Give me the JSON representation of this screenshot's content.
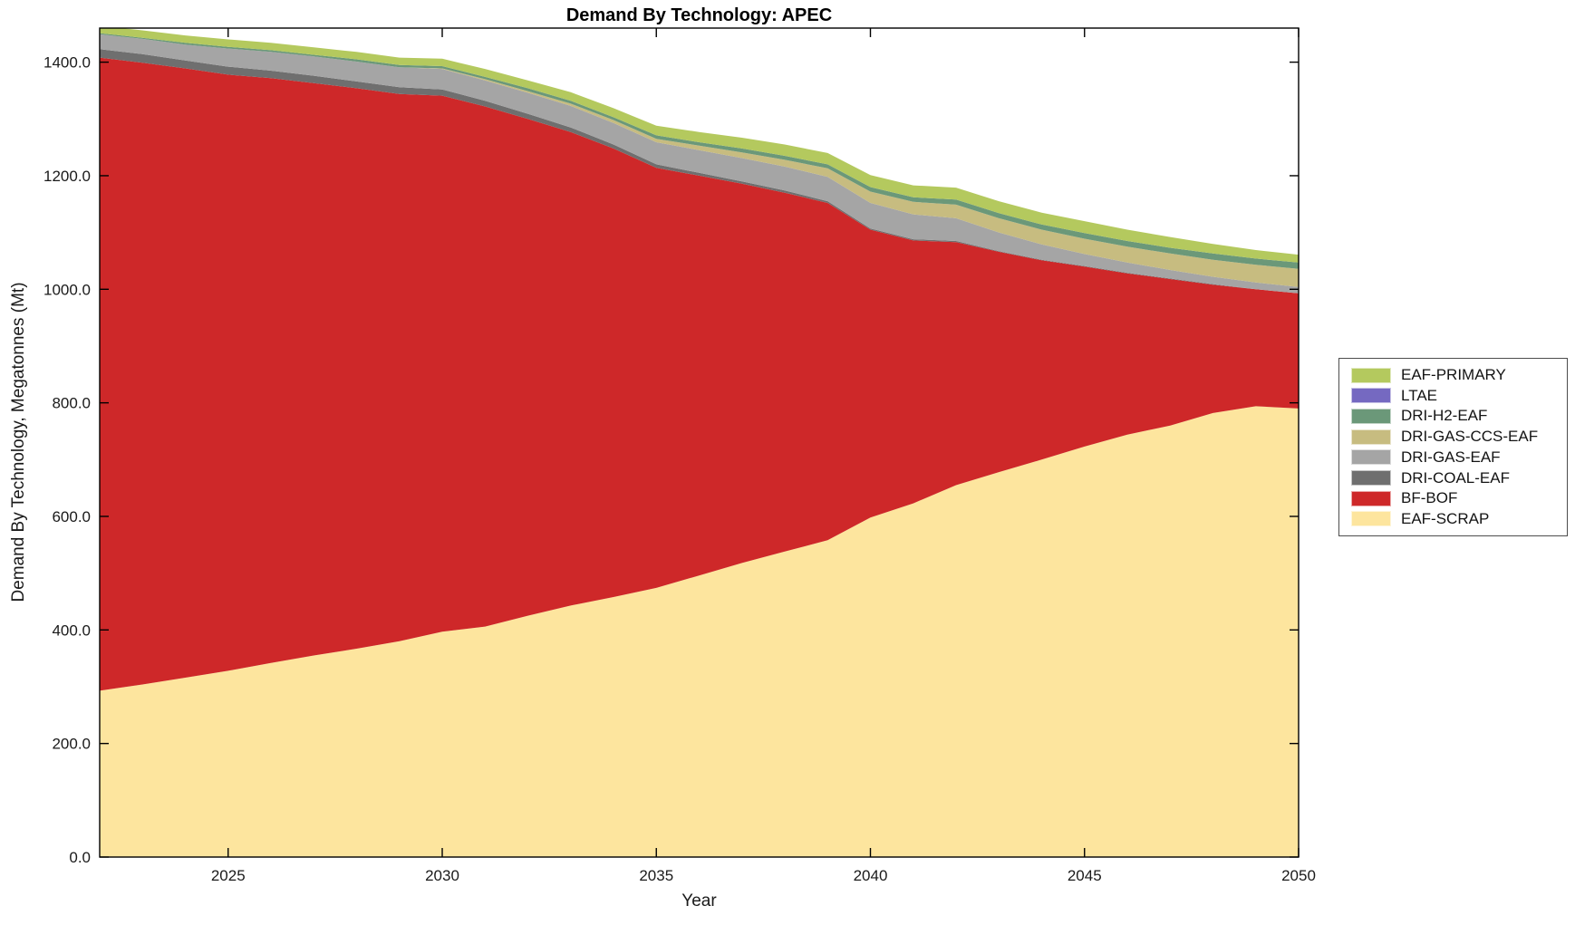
{
  "chart_data": {
    "type": "area",
    "stacked": true,
    "title": "Demand By Technology: APEC",
    "xlabel": "Year",
    "ylabel": "Demand By Technology, Megatonnes (Mt)",
    "x": [
      2022,
      2023,
      2024,
      2025,
      2026,
      2027,
      2028,
      2029,
      2030,
      2031,
      2032,
      2033,
      2034,
      2035,
      2036,
      2037,
      2038,
      2039,
      2040,
      2041,
      2042,
      2043,
      2044,
      2045,
      2046,
      2047,
      2048,
      2049,
      2050
    ],
    "series": [
      {
        "name": "EAF-SCRAP",
        "color": "#fde59e",
        "values": [
          293,
          304,
          316,
          328,
          342,
          355,
          367,
          380,
          397,
          406,
          425,
          443,
          458,
          474,
          496,
          518,
          538,
          558,
          598,
          623,
          655,
          678,
          700,
          723,
          744,
          760,
          782,
          794,
          790
        ]
      },
      {
        "name": "BF-BOF",
        "color": "#ce2829",
        "values": [
          1115,
          1095,
          1073,
          1050,
          1030,
          1008,
          987,
          964,
          944,
          916,
          875,
          834,
          790,
          740,
          704,
          668,
          632,
          594,
          507,
          463,
          428,
          388,
          351,
          317,
          284,
          258,
          226,
          206,
          203
        ]
      },
      {
        "name": "DRI-COAL-EAF",
        "color": "#6f6f6f",
        "values": [
          15,
          15,
          14,
          14,
          13,
          13,
          12,
          12,
          11,
          10,
          9,
          8,
          7,
          6,
          5,
          4,
          4,
          3,
          2,
          2,
          2,
          1,
          1,
          1,
          1,
          1,
          1,
          0,
          0
        ]
      },
      {
        "name": "DRI-GAS-EAF",
        "color": "#a5a5a5",
        "values": [
          26,
          27,
          28,
          32,
          33,
          34,
          35,
          35,
          36,
          36,
          37,
          38,
          38,
          39,
          40,
          41,
          42,
          43,
          45,
          44,
          40,
          33,
          27,
          21,
          18,
          15,
          13,
          12,
          11
        ]
      },
      {
        "name": "DRI-GAS-CCS-EAF",
        "color": "#c7bc80",
        "values": [
          0,
          0,
          0,
          0,
          0,
          0,
          0,
          0,
          1,
          2,
          3,
          4,
          5,
          6,
          8,
          10,
          12,
          15,
          20,
          22,
          24,
          25,
          26,
          27,
          28,
          29,
          30,
          31,
          32
        ]
      },
      {
        "name": "DRI-H2-EAF",
        "color": "#6b9879",
        "values": [
          2,
          2,
          3,
          3,
          3,
          3,
          4,
          4,
          4,
          4,
          5,
          5,
          5,
          6,
          6,
          7,
          7,
          7,
          8,
          8,
          9,
          9,
          9,
          10,
          10,
          10,
          11,
          11,
          11
        ]
      },
      {
        "name": "LTAE",
        "color": "#7569c1",
        "values": [
          0,
          0,
          0,
          0,
          0,
          0,
          0,
          0,
          0,
          0,
          0,
          0,
          0,
          0,
          0,
          0,
          0,
          0,
          0,
          0,
          0,
          0,
          0,
          0,
          0,
          0,
          0,
          0,
          0
        ]
      },
      {
        "name": "EAF-PRIMARY",
        "color": "#b4c95e",
        "values": [
          13,
          13,
          13,
          13,
          13,
          13,
          13,
          13,
          13,
          14,
          14,
          15,
          16,
          17,
          18,
          19,
          20,
          20,
          21,
          21,
          21,
          21,
          21,
          21,
          20,
          19,
          17,
          15,
          14
        ]
      }
    ],
    "legend_items_top_to_bottom": [
      {
        "label": "EAF-PRIMARY",
        "color": "#b4c95e"
      },
      {
        "label": "LTAE",
        "color": "#7569c1"
      },
      {
        "label": "DRI-H2-EAF",
        "color": "#6b9879"
      },
      {
        "label": "DRI-GAS-CCS-EAF",
        "color": "#c7bc80"
      },
      {
        "label": "DRI-GAS-EAF",
        "color": "#a5a5a5"
      },
      {
        "label": "DRI-COAL-EAF",
        "color": "#6f6f6f"
      },
      {
        "label": "BF-BOF",
        "color": "#ce2829"
      },
      {
        "label": "EAF-SCRAP",
        "color": "#fde59e"
      }
    ],
    "legend_position": "outside-right",
    "xlim": [
      2022,
      2050
    ],
    "ylim": [
      0,
      1460
    ],
    "xticks": [
      2025,
      2030,
      2035,
      2040,
      2045,
      2050
    ],
    "xtick_labels": [
      "2025",
      "2030",
      "2035",
      "2040",
      "2045",
      "2050"
    ],
    "yticks": [
      0,
      200,
      400,
      600,
      800,
      1000,
      1200,
      1400
    ],
    "ytick_labels": [
      "0.0",
      "200.0",
      "400.0",
      "600.0",
      "800.0",
      "1000.0",
      "1200.0",
      "1400.0"
    ],
    "grid": false,
    "axis_color": "#000000",
    "background": "#ffffff"
  }
}
